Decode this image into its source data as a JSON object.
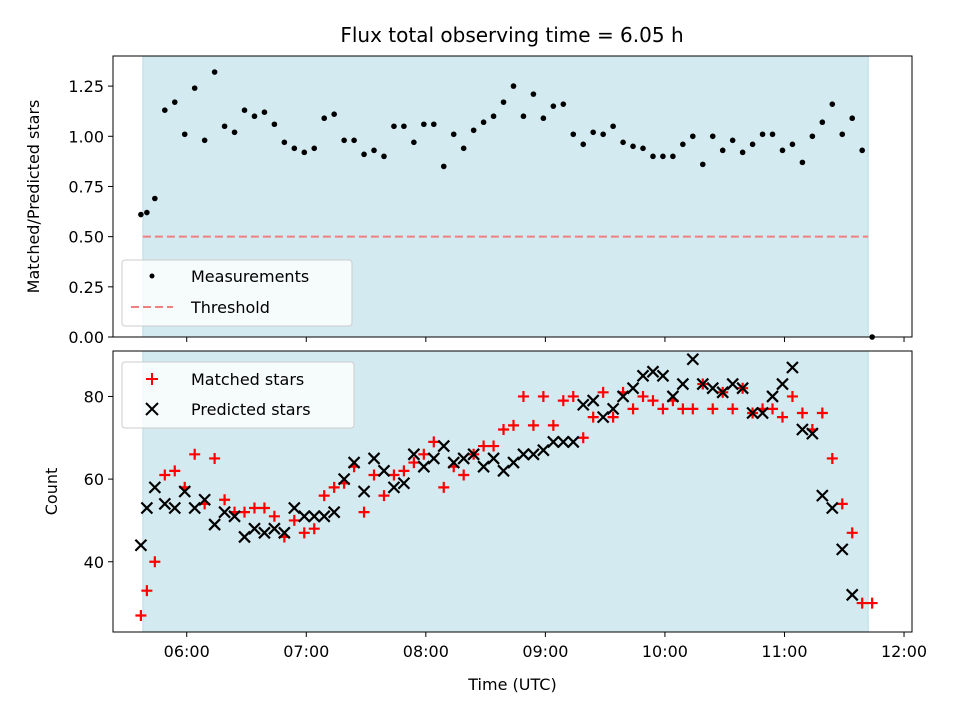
{
  "figure": {
    "title": "Flux total observing time = 6.05 h",
    "shade_color": "#d3eaf0",
    "shade_edge": "#b7dde6",
    "measure_color": "#000000",
    "threshold_color": "#f08080",
    "matched_color": "#ff0000",
    "predicted_color": "#000000"
  },
  "chart_data": [
    {
      "type": "scatter",
      "ylabel": "Matched/Predicted stars",
      "xlim": [
        "05:23",
        "12:04"
      ],
      "ylim": [
        0,
        1.4
      ],
      "yticks": [
        "0.00",
        "0.25",
        "0.50",
        "0.75",
        "1.00",
        "1.25"
      ],
      "ytick_values": [
        0,
        0.25,
        0.5,
        0.75,
        1.0,
        1.25
      ],
      "shaded_span": [
        "05:38",
        "11:42"
      ],
      "legend": {
        "position": "bottom-left",
        "entries": [
          "Measurements",
          "Threshold"
        ]
      },
      "series": [
        {
          "name": "Measurements",
          "marker": "dot",
          "x": [
            "05:37",
            "05:40",
            "05:44",
            "05:49",
            "05:54",
            "05:59",
            "06:04",
            "06:09",
            "06:14",
            "06:19",
            "06:24",
            "06:29",
            "06:34",
            "06:39",
            "06:44",
            "06:49",
            "06:54",
            "06:59",
            "07:04",
            "07:09",
            "07:14",
            "07:19",
            "07:24",
            "07:29",
            "07:34",
            "07:39",
            "07:44",
            "07:49",
            "07:54",
            "07:59",
            "08:04",
            "08:09",
            "08:14",
            "08:19",
            "08:24",
            "08:29",
            "08:34",
            "08:39",
            "08:44",
            "08:49",
            "08:54",
            "08:59",
            "09:04",
            "09:09",
            "09:14",
            "09:19",
            "09:24",
            "09:29",
            "09:34",
            "09:39",
            "09:44",
            "09:49",
            "09:54",
            "09:59",
            "10:04",
            "10:09",
            "10:14",
            "10:19",
            "10:24",
            "10:29",
            "10:34",
            "10:39",
            "10:44",
            "10:49",
            "10:54",
            "10:59",
            "11:04",
            "11:09",
            "11:14",
            "11:19",
            "11:24",
            "11:29",
            "11:34",
            "11:39",
            "11:44"
          ],
          "y": [
            0.61,
            0.62,
            0.69,
            1.13,
            1.17,
            1.01,
            1.24,
            0.98,
            1.32,
            1.05,
            1.02,
            1.13,
            1.1,
            1.12,
            1.06,
            0.97,
            0.94,
            0.92,
            0.94,
            1.09,
            1.11,
            0.98,
            0.98,
            0.91,
            0.93,
            0.9,
            1.05,
            1.05,
            0.97,
            1.06,
            1.06,
            0.85,
            1.01,
            0.94,
            1.03,
            1.07,
            1.1,
            1.17,
            1.25,
            1.1,
            1.21,
            1.09,
            1.15,
            1.16,
            1.01,
            0.96,
            1.02,
            1.01,
            1.05,
            0.97,
            0.95,
            0.94,
            0.9,
            0.9,
            0.9,
            0.96,
            1.0,
            0.86,
            1.0,
            0.93,
            0.98,
            0.92,
            0.96,
            1.01,
            1.01,
            0.93,
            0.96,
            0.87,
            1.0,
            1.07,
            1.16,
            1.01,
            1.09,
            0.93,
            0.0
          ]
        },
        {
          "name": "Threshold",
          "style": "dashed",
          "x": [
            "05:38",
            "11:42"
          ],
          "y": [
            0.5,
            0.5
          ]
        }
      ]
    },
    {
      "type": "scatter",
      "xlabel": "Time (UTC)",
      "ylabel": "Count",
      "xlim": [
        "05:23",
        "12:04"
      ],
      "ylim": [
        23,
        91
      ],
      "yticks": [
        "40",
        "60",
        "80"
      ],
      "ytick_values": [
        40,
        60,
        80
      ],
      "xticks": [
        "06:00",
        "07:00",
        "08:00",
        "09:00",
        "10:00",
        "11:00",
        "12:00"
      ],
      "shaded_span": [
        "05:38",
        "11:42"
      ],
      "legend": {
        "position": "top-left",
        "entries": [
          "Matched stars",
          "Predicted stars"
        ]
      },
      "series": [
        {
          "name": "Matched stars",
          "marker": "plus",
          "x": [
            "05:37",
            "05:40",
            "05:44",
            "05:49",
            "05:54",
            "05:59",
            "06:04",
            "06:09",
            "06:14",
            "06:19",
            "06:24",
            "06:29",
            "06:34",
            "06:39",
            "06:44",
            "06:49",
            "06:54",
            "06:59",
            "07:04",
            "07:09",
            "07:14",
            "07:19",
            "07:24",
            "07:29",
            "07:34",
            "07:39",
            "07:44",
            "07:49",
            "07:54",
            "07:59",
            "08:04",
            "08:09",
            "08:14",
            "08:19",
            "08:24",
            "08:29",
            "08:34",
            "08:39",
            "08:44",
            "08:49",
            "08:54",
            "08:59",
            "09:04",
            "09:09",
            "09:14",
            "09:19",
            "09:24",
            "09:29",
            "09:34",
            "09:39",
            "09:44",
            "09:49",
            "09:54",
            "09:59",
            "10:04",
            "10:09",
            "10:14",
            "10:19",
            "10:24",
            "10:29",
            "10:34",
            "10:39",
            "10:44",
            "10:49",
            "10:54",
            "10:59",
            "11:04",
            "11:09",
            "11:14",
            "11:19",
            "11:24",
            "11:29",
            "11:34",
            "11:39",
            "11:44"
          ],
          "y": [
            27,
            33,
            40,
            61,
            62,
            58,
            66,
            54,
            65,
            55,
            52,
            52,
            53,
            53,
            51,
            46,
            50,
            47,
            48,
            56,
            58,
            59,
            63,
            52,
            61,
            56,
            61,
            62,
            64,
            66,
            69,
            58,
            63,
            61,
            66,
            68,
            68,
            72,
            73,
            80,
            73,
            80,
            73,
            79,
            80,
            70,
            75,
            81,
            75,
            81,
            77,
            80,
            79,
            77,
            79,
            77,
            77,
            83,
            77,
            81,
            77,
            82,
            76,
            77,
            77,
            75,
            80,
            76,
            72,
            76,
            65,
            54,
            47,
            30,
            30
          ]
        },
        {
          "name": "Predicted stars",
          "marker": "x",
          "x": [
            "05:37",
            "05:40",
            "05:44",
            "05:49",
            "05:54",
            "05:59",
            "06:04",
            "06:09",
            "06:14",
            "06:19",
            "06:24",
            "06:29",
            "06:34",
            "06:39",
            "06:44",
            "06:49",
            "06:54",
            "06:59",
            "07:04",
            "07:09",
            "07:14",
            "07:19",
            "07:24",
            "07:29",
            "07:34",
            "07:39",
            "07:44",
            "07:49",
            "07:54",
            "07:59",
            "08:04",
            "08:09",
            "08:14",
            "08:19",
            "08:24",
            "08:29",
            "08:34",
            "08:39",
            "08:44",
            "08:49",
            "08:54",
            "08:59",
            "09:04",
            "09:09",
            "09:14",
            "09:19",
            "09:24",
            "09:29",
            "09:34",
            "09:39",
            "09:44",
            "09:49",
            "09:54",
            "09:59",
            "10:04",
            "10:09",
            "10:14",
            "10:19",
            "10:24",
            "10:29",
            "10:34",
            "10:39",
            "10:44",
            "10:49",
            "10:54",
            "10:59",
            "11:04",
            "11:09",
            "11:14",
            "11:19",
            "11:24",
            "11:29",
            "11:34",
            "11:39",
            "11:44"
          ],
          "y": [
            44,
            53,
            58,
            54,
            53,
            57,
            53,
            55,
            49,
            52,
            51,
            46,
            48,
            47,
            48,
            47,
            53,
            51,
            51,
            51,
            52,
            60,
            64,
            57,
            65,
            62,
            58,
            59,
            66,
            63,
            65,
            68,
            64,
            65,
            66,
            63,
            65,
            62,
            64,
            66,
            66,
            67,
            69,
            69,
            69,
            78,
            79,
            75,
            77,
            80,
            82,
            85,
            86,
            85,
            80,
            83,
            89,
            83,
            82,
            81,
            83,
            82,
            76,
            76,
            80,
            83,
            87,
            72,
            71,
            56,
            53,
            43,
            32,
            null,
            null
          ]
        }
      ]
    }
  ]
}
